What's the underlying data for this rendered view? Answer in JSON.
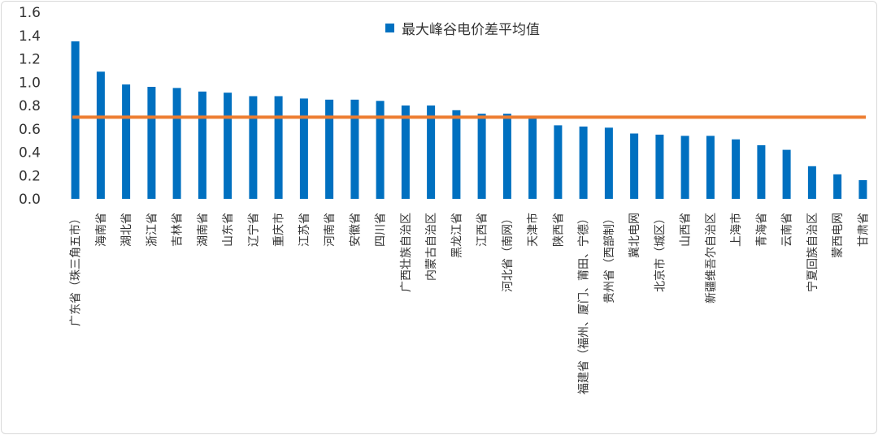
{
  "chart_data": {
    "type": "bar",
    "series": [
      {
        "name": "最大峰谷电价差平均值",
        "color": "#0070c0",
        "values": [
          1.35,
          1.09,
          0.98,
          0.96,
          0.95,
          0.92,
          0.91,
          0.88,
          0.88,
          0.86,
          0.85,
          0.85,
          0.84,
          0.8,
          0.8,
          0.76,
          0.73,
          0.73,
          0.7,
          0.63,
          0.62,
          0.61,
          0.56,
          0.55,
          0.54,
          0.54,
          0.51,
          0.46,
          0.42,
          0.28,
          0.21,
          0.16
        ]
      }
    ],
    "categories": [
      "广东省（珠三角五市）",
      "海南省",
      "湖北省",
      "浙江省",
      "吉林省",
      "湖南省",
      "山东省",
      "辽宁省",
      "重庆市",
      "江苏省",
      "河南省",
      "安徽省",
      "四川省",
      "广西壮族自治区",
      "内蒙古自治区",
      "黑龙江省",
      "江西省",
      "河北省（南网）",
      "天津市",
      "陕西省",
      "福建省（福州、厦门、莆田、宁德）",
      "贵州省（西部制）",
      "冀北电网",
      "北京市（城区）",
      "山西省",
      "新疆维吾尔自治区",
      "上海市",
      "青海省",
      "云南省",
      "宁夏回族自治区",
      "蒙西电网",
      "甘肃省"
    ],
    "reference_line": {
      "value": 0.7,
      "color": "#ed7d31"
    },
    "ylim": [
      0,
      1.6
    ],
    "yticks": [
      "0.0",
      "0.2",
      "0.4",
      "0.6",
      "0.8",
      "1.0",
      "1.2",
      "1.4",
      "1.6"
    ],
    "grid": false,
    "legend": "top-center"
  }
}
